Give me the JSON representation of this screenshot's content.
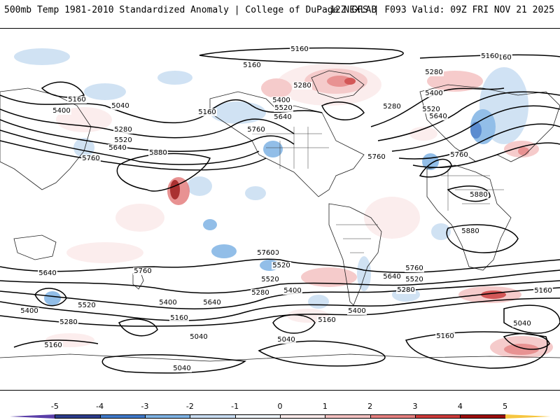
{
  "header": {
    "left": "500mb Temp 1981-2010 Standardized Anomaly | College of DuPage NEXLAB",
    "right": "12Z GFS | F093 Valid: 09Z FRI NOV 21 2025"
  },
  "colorbar": {
    "ticks": [
      "-5",
      "-4",
      "-3",
      "-2",
      "-1",
      "0",
      "1",
      "2",
      "3",
      "4",
      "5"
    ],
    "colors": [
      "#5a3ea8",
      "#2c3c8c",
      "#3f78c8",
      "#7fb3e4",
      "#c8ddf2",
      "#eef4fb",
      "#fbeaea",
      "#f4c2c2",
      "#e58080",
      "#cc3a3a",
      "#9c0e0e",
      "#f6c640"
    ]
  },
  "contour_labels": [
    "5160",
    "5160",
    "5160",
    "5280",
    "5280",
    "5400",
    "5520",
    "5640",
    "5760",
    "5160",
    "5400",
    "5040",
    "5280",
    "5520",
    "5640",
    "5760",
    "5880",
    "5160",
    "5400",
    "5280",
    "5520",
    "5640",
    "5760",
    "5760",
    "5880",
    "5880",
    "5640",
    "5520",
    "5400",
    "5280",
    "5160",
    "5040",
    "5640",
    "5760",
    "5520",
    "5400",
    "5640",
    "5520",
    "5280",
    "5160",
    "5400",
    "5040",
    "5160",
    "5040",
    "5760",
    "5640",
    "5520",
    "5280",
    "5400",
    "5160",
    "5040",
    "5160",
    "5760",
    "5160"
  ]
}
